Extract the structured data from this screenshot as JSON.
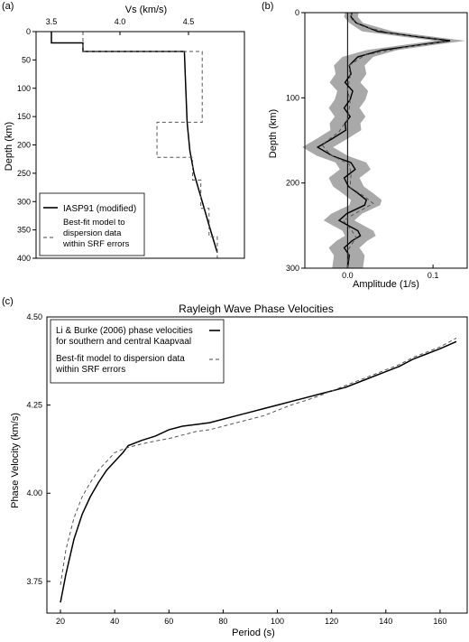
{
  "chart_data": [
    {
      "panel_label": "(a)",
      "type": "line",
      "xlabel": "Vs (km/s)",
      "ylabel": "Depth (km)",
      "xlim": [
        3.5,
        4.8
      ],
      "ylim": [
        0,
        400
      ],
      "y_inverted": true,
      "x_axis_position": "top",
      "x_ticks": [
        "3.5",
        "4.0",
        "4.5"
      ],
      "y_ticks": [
        "0",
        "50",
        "100",
        "150",
        "200",
        "250",
        "300",
        "350",
        "400"
      ],
      "legend_position": "bottom-left",
      "series": [
        {
          "name": "IASP91 (modified)",
          "style": "solid",
          "points": [
            [
              3.5,
              0
            ],
            [
              3.5,
              20
            ],
            [
              3.73,
              20
            ],
            [
              3.73,
              35
            ],
            [
              4.47,
              35
            ],
            [
              4.48,
              100
            ],
            [
              4.49,
              160
            ],
            [
              4.51,
              210
            ],
            [
              4.54,
              250
            ],
            [
              4.6,
              300
            ],
            [
              4.66,
              350
            ],
            [
              4.71,
              390
            ]
          ]
        },
        {
          "name": "Best-fit model to dispersion data within SRF errors",
          "style": "dashed",
          "points": [
            [
              3.73,
              0
            ],
            [
              3.73,
              35
            ],
            [
              4.6,
              35
            ],
            [
              4.6,
              160
            ],
            [
              4.27,
              160
            ],
            [
              4.27,
              222
            ],
            [
              4.53,
              222
            ],
            [
              4.53,
              262
            ],
            [
              4.59,
              262
            ],
            [
              4.59,
              312
            ],
            [
              4.65,
              312
            ],
            [
              4.65,
              362
            ],
            [
              4.71,
              362
            ],
            [
              4.71,
              400
            ]
          ]
        }
      ]
    },
    {
      "panel_label": "(b)",
      "type": "line",
      "xlabel": "Amplitude (1/s)",
      "ylabel": "Depth (km)",
      "xlim": [
        -0.05,
        0.14
      ],
      "ylim": [
        0,
        300
      ],
      "y_inverted": true,
      "x_ticks": [
        "0.0",
        "0.1"
      ],
      "y_ticks": [
        "0",
        "100",
        "200",
        "300"
      ],
      "series": [
        {
          "style": "solid",
          "points": [
            [
              0.005,
              0
            ],
            [
              0.004,
              5
            ],
            [
              0.01,
              12
            ],
            [
              0.035,
              22
            ],
            [
              0.08,
              28
            ],
            [
              0.12,
              33
            ],
            [
              0.09,
              37
            ],
            [
              0.04,
              44
            ],
            [
              0.012,
              52
            ],
            [
              0.002,
              62
            ],
            [
              0.004,
              72
            ],
            [
              -0.003,
              82
            ],
            [
              0.006,
              92
            ],
            [
              0.003,
              102
            ],
            [
              -0.004,
              112
            ],
            [
              0.003,
              122
            ],
            [
              -0.003,
              130
            ],
            [
              -0.002,
              138
            ],
            [
              -0.018,
              148
            ],
            [
              -0.035,
              158
            ],
            [
              -0.018,
              168
            ],
            [
              0.004,
              176
            ],
            [
              0.009,
              184
            ],
            [
              -0.004,
              194
            ],
            [
              0.001,
              204
            ],
            [
              0.012,
              212
            ],
            [
              0.022,
              220
            ],
            [
              0.02,
              226
            ],
            [
              -0.001,
              236
            ],
            [
              -0.01,
              244
            ],
            [
              0.001,
              250
            ],
            [
              0.012,
              256
            ],
            [
              0.015,
              262
            ],
            [
              0.005,
              268
            ],
            [
              -0.004,
              276
            ],
            [
              0.002,
              285
            ],
            [
              0.0,
              300
            ]
          ]
        },
        {
          "style": "dashed",
          "points": [
            [
              0.004,
              0
            ],
            [
              0.005,
              8
            ],
            [
              0.018,
              16
            ],
            [
              0.05,
              24
            ],
            [
              0.1,
              30
            ],
            [
              0.115,
              34
            ],
            [
              0.07,
              40
            ],
            [
              0.02,
              50
            ],
            [
              0.002,
              62
            ],
            [
              0.003,
              75
            ],
            [
              0.0,
              90
            ],
            [
              0.003,
              105
            ],
            [
              0.0,
              125
            ],
            [
              -0.01,
              140
            ],
            [
              -0.03,
              155
            ],
            [
              -0.02,
              167
            ],
            [
              0.002,
              178
            ],
            [
              0.004,
              190
            ],
            [
              0.003,
              205
            ],
            [
              0.02,
              216
            ],
            [
              0.03,
              224
            ],
            [
              0.012,
              234
            ],
            [
              -0.005,
              244
            ],
            [
              0.005,
              256
            ],
            [
              0.01,
              264
            ],
            [
              0.001,
              278
            ],
            [
              0.0,
              300
            ]
          ]
        }
      ]
    },
    {
      "panel_label": "(c)",
      "type": "line",
      "title": "Rayleigh Wave Phase Velocities",
      "xlabel": "Period (s)",
      "ylabel": "Phase Velocity (km/s)",
      "xlim": [
        15,
        170
      ],
      "ylim": [
        3.66,
        4.5
      ],
      "x_ticks": [
        "20",
        "40",
        "60",
        "80",
        "100",
        "120",
        "140",
        "160"
      ],
      "y_ticks": [
        "3.75",
        "4.00",
        "4.25",
        "4.50"
      ],
      "legend_position": "top-left",
      "series": [
        {
          "name": "Li & Burke (2006) phase velocities for southern and central Kaapvaal",
          "name_lines": [
            "Li & Burke (2006) phase velocities",
            "for southern and central Kaapvaal"
          ],
          "style": "solid",
          "x": [
            20,
            22,
            25,
            28,
            31,
            34,
            37,
            40,
            43,
            45,
            50,
            55,
            60,
            65,
            70,
            75,
            80,
            85,
            90,
            95,
            100,
            105,
            110,
            115,
            120,
            125,
            130,
            135,
            140,
            145,
            150,
            155,
            160,
            166
          ],
          "y": [
            3.69,
            3.77,
            3.87,
            3.94,
            3.99,
            4.03,
            4.065,
            4.09,
            4.115,
            4.135,
            4.15,
            4.162,
            4.18,
            4.19,
            4.195,
            4.2,
            4.21,
            4.22,
            4.23,
            4.24,
            4.25,
            4.26,
            4.27,
            4.28,
            4.29,
            4.3,
            4.315,
            4.33,
            4.345,
            4.36,
            4.38,
            4.395,
            4.41,
            4.43
          ]
        },
        {
          "name": "Best-fit model to dispersion data within SRF errors",
          "name_lines": [
            "Best-fit model to dispersion data",
            "within SRF errors"
          ],
          "style": "dashed",
          "x": [
            20,
            22,
            25,
            28,
            31,
            34,
            37,
            40,
            43,
            45,
            50,
            55,
            60,
            65,
            70,
            75,
            80,
            85,
            90,
            95,
            100,
            105,
            110,
            115,
            120,
            125,
            130,
            135,
            140,
            145,
            150,
            155,
            160,
            166
          ],
          "y": [
            3.74,
            3.84,
            3.93,
            3.99,
            4.03,
            4.065,
            4.09,
            4.115,
            4.125,
            4.13,
            4.14,
            4.148,
            4.155,
            4.165,
            4.175,
            4.18,
            4.19,
            4.2,
            4.21,
            4.22,
            4.235,
            4.25,
            4.262,
            4.275,
            4.29,
            4.305,
            4.32,
            4.335,
            4.35,
            4.365,
            4.385,
            4.4,
            4.415,
            4.44
          ]
        }
      ]
    }
  ]
}
